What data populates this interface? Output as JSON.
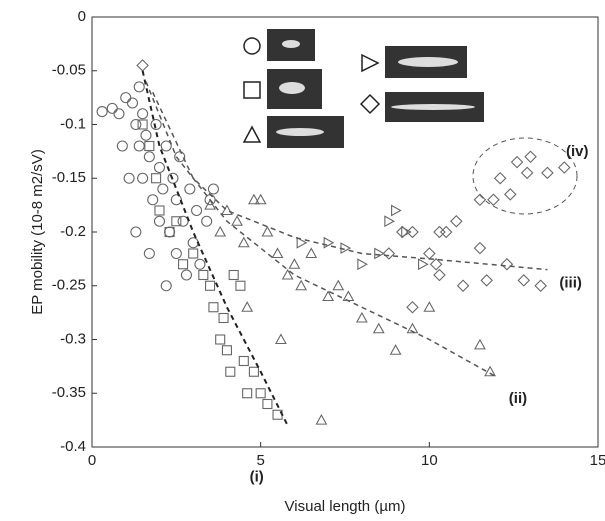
{
  "chart_data": {
    "type": "scatter",
    "x_label": "Visual length (µm)",
    "y_label": "EP mobility (10-8 m2/sV)",
    "xlim": [
      0,
      15
    ],
    "xticks": [
      0,
      5,
      10,
      15
    ],
    "ylim": [
      -0.4,
      0
    ],
    "yticks": [
      0,
      -0.05,
      -0.1,
      -0.15,
      -0.2,
      -0.25,
      -0.3,
      -0.35,
      -0.4
    ],
    "color": "#666666",
    "series": [
      {
        "marker": "circle",
        "x": [
          0.3,
          0.6,
          0.8,
          1.0,
          1.2,
          1.3,
          1.4,
          1.5,
          1.5,
          1.6,
          1.7,
          1.8,
          1.9,
          2.0,
          2.0,
          2.1,
          2.2,
          2.3,
          2.4,
          2.5,
          2.5,
          2.6,
          2.7,
          2.8,
          2.9,
          3.0,
          3.1,
          3.2,
          3.4,
          3.5,
          1.1,
          1.3,
          0.9,
          2.2,
          1.7,
          3.6,
          1.4
        ],
        "y": [
          -0.088,
          -0.085,
          -0.09,
          -0.075,
          -0.08,
          -0.1,
          -0.12,
          -0.09,
          -0.15,
          -0.11,
          -0.13,
          -0.17,
          -0.1,
          -0.14,
          -0.19,
          -0.16,
          -0.12,
          -0.2,
          -0.15,
          -0.17,
          -0.22,
          -0.13,
          -0.19,
          -0.24,
          -0.16,
          -0.21,
          -0.18,
          -0.23,
          -0.19,
          -0.17,
          -0.15,
          -0.2,
          -0.12,
          -0.25,
          -0.22,
          -0.16,
          -0.065
        ]
      },
      {
        "marker": "square",
        "x": [
          1.5,
          1.7,
          1.9,
          2.0,
          2.3,
          2.5,
          2.7,
          3.0,
          3.3,
          3.5,
          3.6,
          3.8,
          4.0,
          4.2,
          4.4,
          4.5,
          4.6,
          4.8,
          5.0,
          5.2,
          5.5,
          4.1,
          3.9
        ],
        "y": [
          -0.1,
          -0.12,
          -0.15,
          -0.18,
          -0.2,
          -0.19,
          -0.23,
          -0.22,
          -0.24,
          -0.25,
          -0.27,
          -0.3,
          -0.31,
          -0.24,
          -0.25,
          -0.32,
          -0.35,
          -0.33,
          -0.35,
          -0.36,
          -0.37,
          -0.33,
          -0.28
        ]
      },
      {
        "marker": "triangle",
        "x": [
          3.5,
          3.8,
          4.0,
          4.3,
          4.5,
          4.8,
          5.0,
          5.2,
          5.5,
          5.8,
          6.0,
          6.2,
          6.5,
          7.0,
          7.3,
          7.6,
          8.0,
          8.5,
          9.0,
          9.5,
          10.0,
          11.5,
          11.8,
          6.8,
          5.6,
          4.6
        ],
        "y": [
          -0.175,
          -0.2,
          -0.18,
          -0.19,
          -0.21,
          -0.17,
          -0.17,
          -0.2,
          -0.22,
          -0.24,
          -0.23,
          -0.25,
          -0.22,
          -0.26,
          -0.25,
          -0.26,
          -0.28,
          -0.29,
          -0.31,
          -0.29,
          -0.27,
          -0.305,
          -0.33,
          -0.375,
          -0.3,
          -0.27
        ]
      },
      {
        "marker": "triangle-right",
        "x": [
          6.2,
          7.0,
          7.5,
          8.0,
          8.5,
          8.8,
          9.0,
          9.3,
          9.8
        ],
        "y": [
          -0.21,
          -0.21,
          -0.215,
          -0.23,
          -0.22,
          -0.19,
          -0.18,
          -0.2,
          -0.23
        ]
      },
      {
        "marker": "diamond",
        "x": [
          1.5,
          8.8,
          9.2,
          9.5,
          10.0,
          10.2,
          10.3,
          10.5,
          10.8,
          11.0,
          11.5,
          11.7,
          12.3,
          12.8,
          13.3,
          11.5,
          12.1,
          11.9,
          12.4,
          12.6,
          13.0,
          12.9,
          13.5,
          14.0,
          10.3,
          9.5
        ],
        "y": [
          -0.045,
          -0.22,
          -0.2,
          -0.2,
          -0.22,
          -0.23,
          -0.24,
          -0.2,
          -0.19,
          -0.25,
          -0.215,
          -0.245,
          -0.23,
          -0.245,
          -0.25,
          -0.17,
          -0.15,
          -0.17,
          -0.165,
          -0.135,
          -0.13,
          -0.145,
          -0.145,
          -0.14,
          -0.2,
          -0.27
        ]
      }
    ],
    "fits": [
      {
        "label": "(i)",
        "x": [
          1.5,
          2,
          3,
          4,
          5,
          5.8
        ],
        "y": [
          -0.05,
          -0.12,
          -0.2,
          -0.27,
          -0.33,
          -0.38
        ]
      },
      {
        "label": "(ii)",
        "x": [
          1.6,
          2.5,
          4,
          6,
          8,
          10,
          12
        ],
        "y": [
          -0.06,
          -0.13,
          -0.19,
          -0.24,
          -0.27,
          -0.3,
          -0.335
        ]
      },
      {
        "label": "(iii)",
        "x": [
          1.8,
          3,
          4,
          6,
          8,
          10,
          13.5
        ],
        "y": [
          -0.07,
          -0.15,
          -0.18,
          -0.205,
          -0.22,
          -0.225,
          -0.235
        ]
      }
    ],
    "cluster_label": "(iv)"
  }
}
